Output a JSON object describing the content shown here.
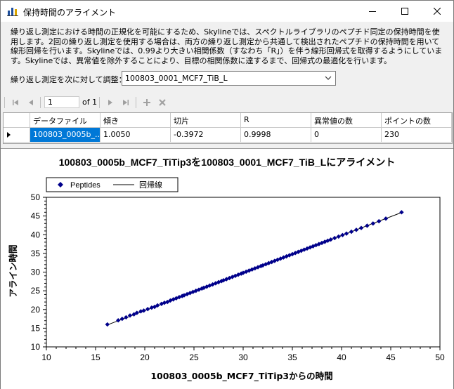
{
  "window": {
    "title": "保持時間のアライメント",
    "minimize_icon": "minimize-icon",
    "maximize_icon": "maximize-icon",
    "close_icon": "close-icon"
  },
  "description": "繰り返し測定における時間の正規化を可能にするため、Skylineでは、スペクトルライブラリのペプチド同定の保持時間を使用します。2回の繰り返し測定を使用する場合は、両方の繰り返し測定から共通して検出されたペプチドの保持時間を用いて線形回帰を行います。Skylineでは、0.99より大きい相関係数（すなわち「R」）を伴う線形回帰式を取得するようにしています。Skylineでは、異常値を除外することにより、目標の相関係数に達するまで、回帰式の最適化を行います。",
  "adjust": {
    "label": "繰り返し測定を次に対して調整：",
    "selected": "100803_0001_MCF7_TiB_L"
  },
  "navigator": {
    "position": "1",
    "of_label": "of 1",
    "icons": [
      "first-icon",
      "prev-icon",
      "next-icon",
      "last-icon",
      "add-icon",
      "delete-icon"
    ]
  },
  "grid": {
    "headers": [
      "データファイル",
      "傾き",
      "切片",
      "R",
      "異常値の数",
      "ポイントの数"
    ],
    "rows": [
      [
        "100803_0005b_...",
        "1.0050",
        "-0.3972",
        "0.9998",
        "0",
        "230"
      ]
    ]
  },
  "chart_data": {
    "type": "scatter",
    "title": "100803_0005b_MCF7_TiTip3を100803_0001_MCF7_TiB_Lにアライメント",
    "xlabel": "100803_0005b_MCF7_TiTip3からの時間",
    "ylabel": "アライン時間",
    "xlim": [
      10,
      50
    ],
    "ylim": [
      10,
      50
    ],
    "xticks": [
      "10",
      "15",
      "20",
      "25",
      "30",
      "35",
      "40",
      "45",
      "50"
    ],
    "yticks": [
      "10",
      "15",
      "20",
      "25",
      "30",
      "35",
      "40",
      "45",
      "50"
    ],
    "legend": {
      "placement": "top-left",
      "entries": [
        "Peptides",
        "回帰線"
      ]
    },
    "series_color": "#00008b",
    "regression": {
      "slope": 1.005,
      "intercept": -0.3972,
      "x_range": [
        16.2,
        46.2
      ]
    },
    "points_x": [
      16.2,
      17.3,
      17.7,
      18.1,
      18.5,
      18.9,
      19.2,
      19.6,
      19.9,
      20.3,
      20.7,
      21.0,
      21.3,
      21.7,
      22.0,
      22.3,
      22.6,
      22.9,
      23.2,
      23.5,
      23.8,
      24.0,
      24.3,
      24.6,
      24.9,
      25.2,
      25.5,
      25.8,
      26.0,
      26.3,
      26.6,
      26.9,
      27.2,
      27.5,
      27.8,
      28.0,
      28.3,
      28.6,
      28.9,
      29.2,
      29.5,
      29.8,
      30.0,
      30.3,
      30.6,
      30.9,
      31.2,
      31.5,
      31.8,
      32.0,
      32.3,
      32.6,
      32.9,
      33.2,
      33.5,
      33.8,
      34.1,
      34.4,
      34.7,
      35.0,
      35.3,
      35.6,
      35.9,
      36.2,
      36.5,
      36.8,
      37.1,
      37.4,
      37.7,
      38.0,
      38.3,
      38.6,
      38.9,
      39.3,
      39.7,
      40.1,
      40.5,
      41.0,
      41.5,
      42.0,
      42.6,
      43.2,
      43.8,
      44.5,
      46.1
    ],
    "points_y": [
      16.0,
      17.1,
      17.5,
      17.9,
      18.4,
      18.7,
      19.1,
      19.5,
      19.7,
      20.1,
      20.5,
      20.7,
      21.1,
      21.5,
      21.8,
      22.0,
      22.4,
      22.7,
      23.0,
      23.3,
      23.6,
      23.8,
      24.1,
      24.4,
      24.7,
      25.0,
      25.3,
      25.6,
      25.8,
      26.1,
      26.4,
      26.7,
      27.0,
      27.3,
      27.6,
      27.8,
      28.1,
      28.4,
      28.7,
      29.0,
      29.3,
      29.6,
      29.8,
      30.1,
      30.4,
      30.7,
      31.0,
      31.3,
      31.6,
      31.8,
      32.1,
      32.4,
      32.7,
      33.0,
      33.3,
      33.6,
      33.9,
      34.2,
      34.5,
      34.8,
      35.1,
      35.4,
      35.7,
      36.0,
      36.3,
      36.6,
      36.9,
      37.2,
      37.5,
      37.8,
      38.1,
      38.4,
      38.7,
      39.1,
      39.5,
      39.9,
      40.3,
      40.8,
      41.3,
      41.8,
      42.4,
      43.0,
      43.6,
      44.3,
      46.0
    ]
  }
}
